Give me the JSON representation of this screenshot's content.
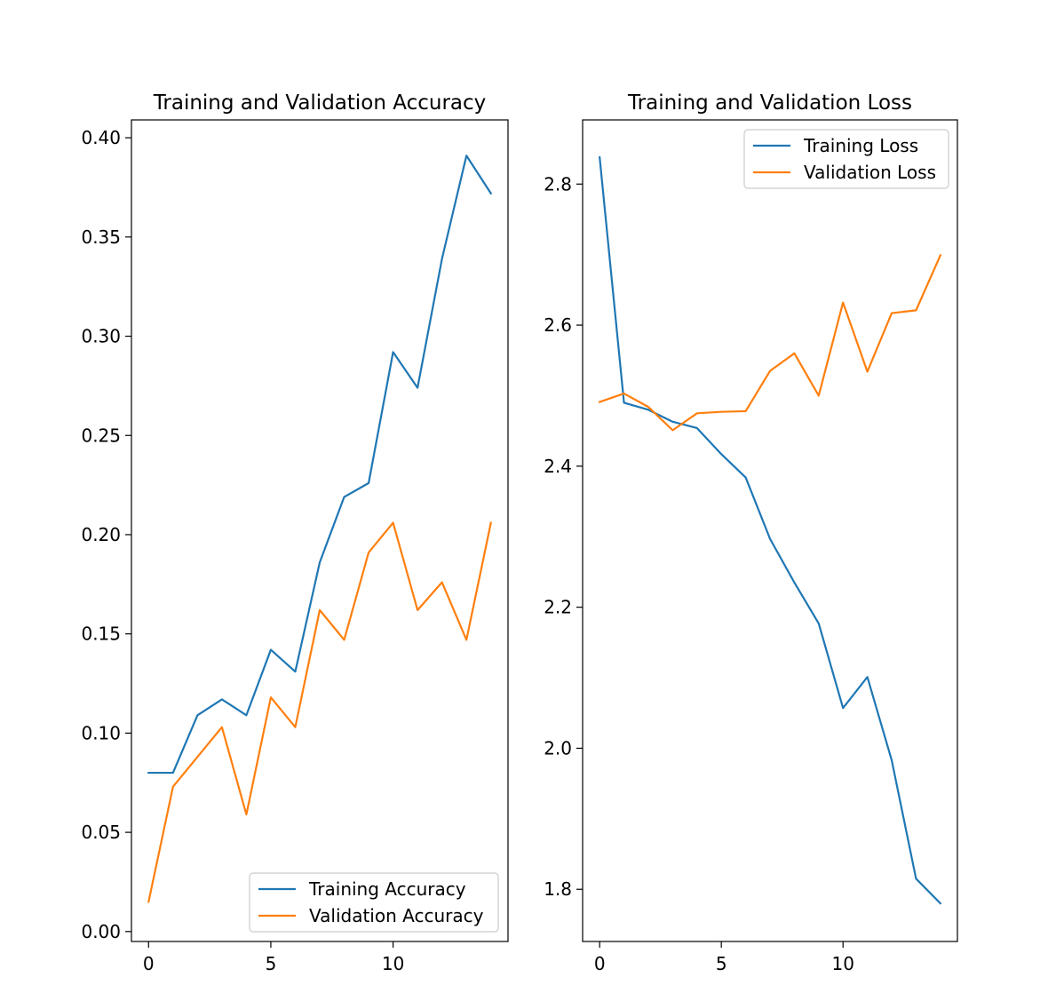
{
  "colors": {
    "training": "#1f77b4",
    "validation": "#ff7f0e"
  },
  "chart_data": [
    {
      "type": "line",
      "title": "Training and Validation Accuracy",
      "xlabel": "",
      "ylabel": "",
      "xlim": [
        -0.7,
        14.7
      ],
      "ylim": [
        -0.005,
        0.409
      ],
      "xticks": [
        0,
        5,
        10
      ],
      "xtick_labels": [
        "0",
        "5",
        "10"
      ],
      "yticks": [
        0.0,
        0.05,
        0.1,
        0.15,
        0.2,
        0.25,
        0.3,
        0.35,
        0.4
      ],
      "ytick_labels": [
        "0.00",
        "0.05",
        "0.10",
        "0.15",
        "0.20",
        "0.25",
        "0.30",
        "0.35",
        "0.40"
      ],
      "grid": false,
      "legend_position": "lower-right",
      "x": [
        0,
        1,
        2,
        3,
        4,
        5,
        6,
        7,
        8,
        9,
        10,
        11,
        12,
        13,
        14
      ],
      "series": [
        {
          "name": "Training Accuracy",
          "color": "#1f77b4",
          "values": [
            0.08,
            0.08,
            0.109,
            0.117,
            0.109,
            0.142,
            0.131,
            0.186,
            0.219,
            0.226,
            0.292,
            0.274,
            0.339,
            0.391,
            0.372
          ]
        },
        {
          "name": "Validation Accuracy",
          "color": "#ff7f0e",
          "values": [
            0.015,
            0.073,
            0.088,
            0.103,
            0.059,
            0.118,
            0.103,
            0.162,
            0.147,
            0.191,
            0.206,
            0.162,
            0.176,
            0.147,
            0.206
          ]
        }
      ]
    },
    {
      "type": "line",
      "title": "Training and Validation Loss",
      "xlabel": "",
      "ylabel": "",
      "xlim": [
        -0.7,
        14.7
      ],
      "ylim": [
        1.726,
        2.891
      ],
      "xticks": [
        0,
        5,
        10
      ],
      "xtick_labels": [
        "0",
        "5",
        "10"
      ],
      "yticks": [
        1.8,
        2.0,
        2.2,
        2.4,
        2.6,
        2.8
      ],
      "ytick_labels": [
        "1.8",
        "2.0",
        "2.2",
        "2.4",
        "2.6",
        "2.8"
      ],
      "grid": false,
      "legend_position": "upper-right",
      "x": [
        0,
        1,
        2,
        3,
        4,
        5,
        6,
        7,
        8,
        9,
        10,
        11,
        12,
        13,
        14
      ],
      "series": [
        {
          "name": "Training Loss",
          "color": "#1f77b4",
          "values": [
            2.838,
            2.49,
            2.48,
            2.463,
            2.454,
            2.417,
            2.384,
            2.297,
            2.235,
            2.177,
            2.057,
            2.101,
            1.983,
            1.815,
            1.78
          ]
        },
        {
          "name": "Validation Loss",
          "color": "#ff7f0e",
          "values": [
            2.491,
            2.503,
            2.484,
            2.451,
            2.475,
            2.477,
            2.478,
            2.535,
            2.56,
            2.5,
            2.632,
            2.534,
            2.617,
            2.621,
            2.699
          ]
        }
      ]
    }
  ]
}
